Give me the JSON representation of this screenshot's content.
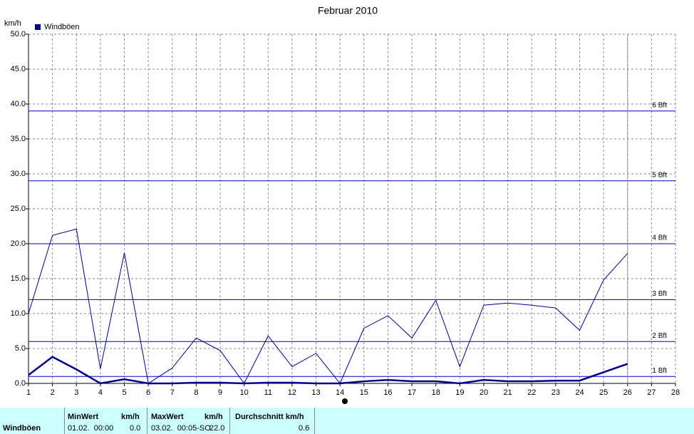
{
  "chart_data": {
    "type": "line",
    "title": "Februar 2010",
    "y_label": "km/h",
    "x": [
      1,
      2,
      3,
      4,
      5,
      6,
      7,
      8,
      9,
      10,
      11,
      12,
      13,
      14,
      15,
      16,
      17,
      18,
      19,
      20,
      21,
      22,
      23,
      24,
      25,
      26
    ],
    "series": [
      {
        "name": "Windböen",
        "color": "#00008b",
        "width": 1,
        "values": [
          10.0,
          21.2,
          22.1,
          2.1,
          18.7,
          0,
          2.2,
          6.5,
          4.7,
          0,
          6.8,
          2.4,
          4.3,
          0,
          7.9,
          9.7,
          6.5,
          11.9,
          2.4,
          11.2,
          11.5,
          11.2,
          10.8,
          7.6,
          14.8,
          18.6
        ]
      },
      {
        "color": "#00008b",
        "width": 2.5,
        "values": [
          1.2,
          3.8,
          2.0,
          0,
          0.6,
          0,
          0,
          0.1,
          0.1,
          0,
          0.1,
          0.1,
          0,
          0,
          0.3,
          0.5,
          0.3,
          0.3,
          0,
          0.5,
          0.3,
          0.3,
          0.4,
          0.4,
          1.6,
          2.8
        ]
      }
    ],
    "reference_lines": [
      {
        "value": 1,
        "label": "1 Bft"
      },
      {
        "value": 6,
        "label": "2 Bft"
      },
      {
        "value": 12,
        "label": "3 Bft"
      },
      {
        "value": 20,
        "label": "4 Bft"
      },
      {
        "value": 29,
        "label": "5 Bft"
      },
      {
        "value": 39,
        "label": "6 Bft"
      }
    ],
    "reference_color": "#0000cc",
    "xlim": [
      1,
      28
    ],
    "xticks": [
      1,
      2,
      3,
      4,
      5,
      6,
      7,
      8,
      9,
      10,
      11,
      12,
      13,
      14,
      15,
      16,
      17,
      18,
      19,
      20,
      21,
      22,
      23,
      24,
      25,
      26,
      27,
      28
    ],
    "ylim": [
      0,
      50
    ],
    "yticks": [
      {
        "value": 0,
        "label": "0.0"
      },
      {
        "value": 5,
        "label": "5.0"
      },
      {
        "value": 10,
        "label": "10.0"
      },
      {
        "value": 15,
        "label": "15.0"
      },
      {
        "value": 20,
        "label": "20.0"
      },
      {
        "value": 25,
        "label": "25.0"
      },
      {
        "value": 30,
        "label": "30.0"
      },
      {
        "value": 35,
        "label": "35.0"
      },
      {
        "value": 40,
        "label": "40.0"
      },
      {
        "value": 45,
        "label": "45.0"
      },
      {
        "value": 50,
        "label": "50.0"
      }
    ],
    "grid": true
  },
  "summary": {
    "row_label": "Windböen",
    "min_header": "MinWert",
    "min_unit": "km/h",
    "min_time": "01.02.  00:00",
    "min_value": "0.0",
    "max_header": "MaxWert",
    "max_unit": "km/h",
    "max_time": "03.02.  00:05-SO",
    "max_value": "22.0",
    "avg_header": "Durchschnitt km/h",
    "avg_value": "0.6"
  }
}
